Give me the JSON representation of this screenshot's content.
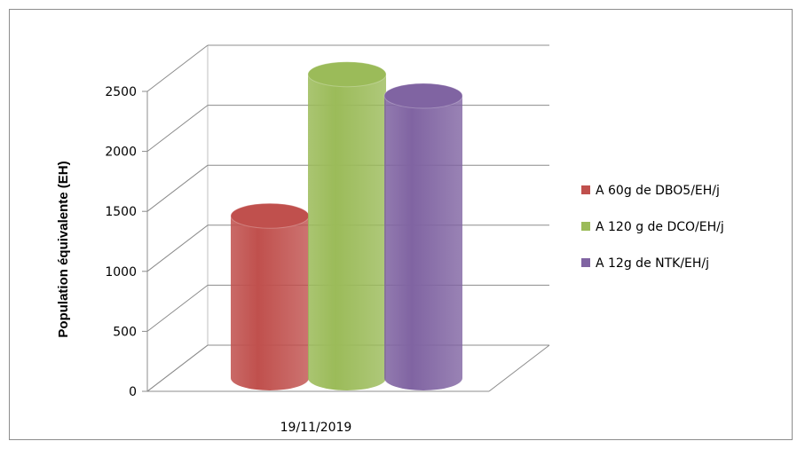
{
  "chart_data": {
    "type": "bar",
    "style": "3d-cylinder",
    "categories": [
      "19/11/2019"
    ],
    "series": [
      {
        "name": "A 60g de DBO5/EH/j",
        "values": [
          1300
        ],
        "color": "#c0504d"
      },
      {
        "name": "A 120 g de DCO/EH/j",
        "values": [
          2480
        ],
        "color": "#9bbb59"
      },
      {
        "name": "A 12g de NTK/EH/j",
        "values": [
          2300
        ],
        "color": "#8064a2"
      }
    ],
    "title": "",
    "xlabel": "",
    "ylabel": "Population équivalente (EH)",
    "ylim": [
      0,
      2500
    ],
    "yticks": [
      "0",
      "500",
      "1000",
      "1500",
      "2000",
      "2500"
    ],
    "grid": true,
    "legend": "right"
  }
}
